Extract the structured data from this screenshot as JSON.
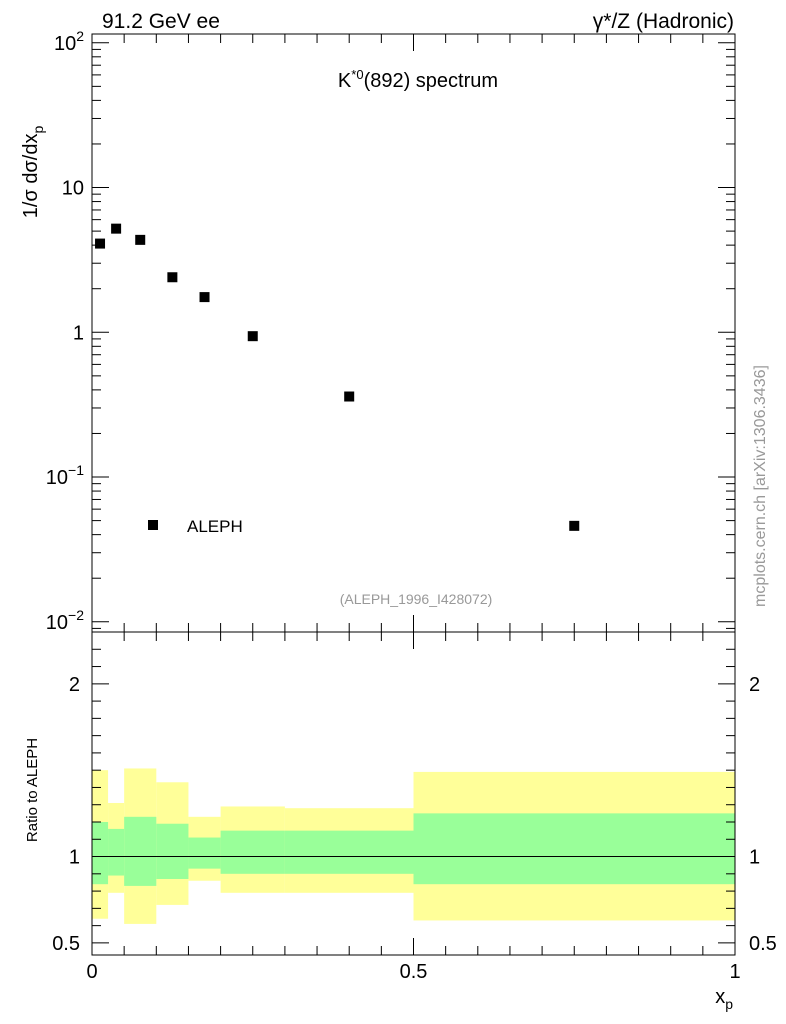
{
  "header": {
    "left": "91.2 GeV ee",
    "right": "γ*/Z (Hadronic)"
  },
  "watermark": "mcplots.cern.ch [arXiv:1306.3436]",
  "chart_data": [
    {
      "type": "scatter",
      "title_main": "K",
      "title_sup": "*0",
      "title_rest": "(892) spectrum",
      "analysis_id": "(ALEPH_1996_I428072)",
      "ylabel_prefix": "1/σ  dσ/dx",
      "ylabel_sub": "p",
      "yscale": "log",
      "ylim": [
        0.0085,
        115
      ],
      "xlim": [
        0,
        1
      ],
      "y_ticks": [
        {
          "value": 0.01,
          "base": "10",
          "exp": "−2"
        },
        {
          "value": 0.1,
          "base": "10",
          "exp": "−1"
        },
        {
          "value": 1,
          "base": "1",
          "exp": ""
        },
        {
          "value": 10,
          "base": "10",
          "exp": ""
        },
        {
          "value": 100,
          "base": "10",
          "exp": "2"
        }
      ],
      "legend": {
        "label": "ALEPH",
        "position": "bottom-left"
      },
      "series": [
        {
          "name": "ALEPH",
          "x": [
            0.0125,
            0.0375,
            0.075,
            0.125,
            0.175,
            0.25,
            0.4,
            0.75
          ],
          "y": [
            4.1,
            5.2,
            4.35,
            2.4,
            1.75,
            0.94,
            0.36,
            0.046
          ]
        }
      ]
    },
    {
      "type": "area",
      "ylabel": "Ratio to ALEPH",
      "xlabel": "x",
      "xlabel_sub": "p",
      "ylim": [
        0.43,
        2.3
      ],
      "xlim": [
        0,
        1
      ],
      "x_ticks": [
        {
          "value": 0,
          "label": "0"
        },
        {
          "value": 0.5,
          "label": "0.5"
        },
        {
          "value": 1,
          "label": "1"
        }
      ],
      "y_ticks": [
        {
          "value": 0.5,
          "label": "0.5"
        },
        {
          "value": 1,
          "label": "1"
        },
        {
          "value": 2,
          "label": "2"
        }
      ],
      "reference_line": 1.0,
      "bins": [
        {
          "x0": 0.0,
          "x1": 0.025,
          "inner": [
            0.84,
            1.2
          ],
          "outer": [
            0.64,
            1.5
          ]
        },
        {
          "x0": 0.025,
          "x1": 0.05,
          "inner": [
            0.89,
            1.16
          ],
          "outer": [
            0.79,
            1.31
          ]
        },
        {
          "x0": 0.05,
          "x1": 0.1,
          "inner": [
            0.83,
            1.23
          ],
          "outer": [
            0.61,
            1.51
          ]
        },
        {
          "x0": 0.1,
          "x1": 0.15,
          "inner": [
            0.87,
            1.19
          ],
          "outer": [
            0.72,
            1.43
          ]
        },
        {
          "x0": 0.15,
          "x1": 0.2,
          "inner": [
            0.93,
            1.11
          ],
          "outer": [
            0.86,
            1.23
          ]
        },
        {
          "x0": 0.2,
          "x1": 0.3,
          "inner": [
            0.9,
            1.15
          ],
          "outer": [
            0.79,
            1.29
          ]
        },
        {
          "x0": 0.3,
          "x1": 0.5,
          "inner": [
            0.9,
            1.15
          ],
          "outer": [
            0.79,
            1.28
          ]
        },
        {
          "x0": 0.5,
          "x1": 1.0,
          "inner": [
            0.84,
            1.25
          ],
          "outer": [
            0.63,
            1.49
          ]
        }
      ],
      "colors": {
        "inner": "#99ff99",
        "outer": "#ffff99",
        "line": "#000000"
      }
    }
  ]
}
